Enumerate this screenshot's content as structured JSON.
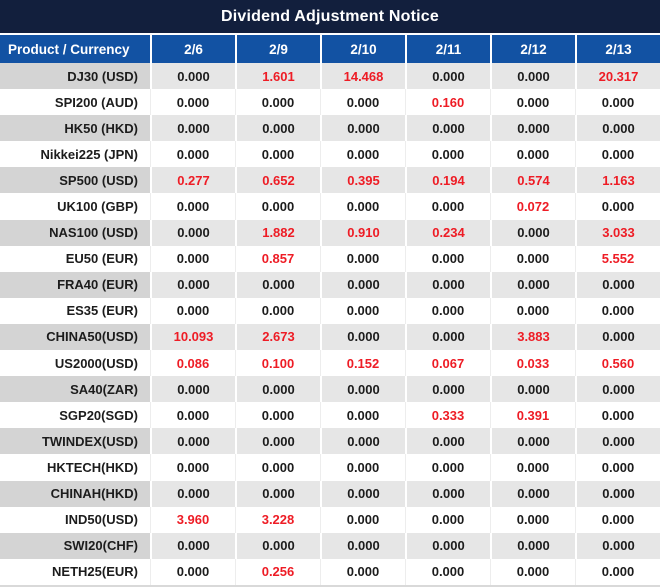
{
  "title": "Dividend Adjustment Notice",
  "colors": {
    "title_bg": "#121f3d",
    "header_bg": "#1252a3",
    "row_gray_product": "#d4d4d4",
    "row_gray_value": "#e6e6e6",
    "row_white": "#ffffff",
    "highlight_red": "#ee1c25",
    "text_dark": "#1c1c1c"
  },
  "chart_data": {
    "type": "table",
    "title": "Dividend Adjustment Notice",
    "columns": [
      "Product / Currency",
      "2/6",
      "2/9",
      "2/10",
      "2/11",
      "2/12",
      "2/13"
    ],
    "rows": [
      {
        "product": "DJ30 (USD)",
        "values": [
          "0.000",
          "1.601",
          "14.468",
          "0.000",
          "0.000",
          "20.317"
        ]
      },
      {
        "product": "SPI200 (AUD)",
        "values": [
          "0.000",
          "0.000",
          "0.000",
          "0.160",
          "0.000",
          "0.000"
        ]
      },
      {
        "product": "HK50 (HKD)",
        "values": [
          "0.000",
          "0.000",
          "0.000",
          "0.000",
          "0.000",
          "0.000"
        ]
      },
      {
        "product": "Nikkei225 (JPN)",
        "values": [
          "0.000",
          "0.000",
          "0.000",
          "0.000",
          "0.000",
          "0.000"
        ]
      },
      {
        "product": "SP500 (USD)",
        "values": [
          "0.277",
          "0.652",
          "0.395",
          "0.194",
          "0.574",
          "1.163"
        ]
      },
      {
        "product": "UK100 (GBP)",
        "values": [
          "0.000",
          "0.000",
          "0.000",
          "0.000",
          "0.072",
          "0.000"
        ]
      },
      {
        "product": "NAS100 (USD)",
        "values": [
          "0.000",
          "1.882",
          "0.910",
          "0.234",
          "0.000",
          "3.033"
        ]
      },
      {
        "product": "EU50 (EUR)",
        "values": [
          "0.000",
          "0.857",
          "0.000",
          "0.000",
          "0.000",
          "5.552"
        ]
      },
      {
        "product": "FRA40 (EUR)",
        "values": [
          "0.000",
          "0.000",
          "0.000",
          "0.000",
          "0.000",
          "0.000"
        ]
      },
      {
        "product": "ES35 (EUR)",
        "values": [
          "0.000",
          "0.000",
          "0.000",
          "0.000",
          "0.000",
          "0.000"
        ]
      },
      {
        "product": "CHINA50(USD)",
        "values": [
          "10.093",
          "2.673",
          "0.000",
          "0.000",
          "3.883",
          "0.000"
        ]
      },
      {
        "product": "US2000(USD)",
        "values": [
          "0.086",
          "0.100",
          "0.152",
          "0.067",
          "0.033",
          "0.560"
        ]
      },
      {
        "product": "SA40(ZAR)",
        "values": [
          "0.000",
          "0.000",
          "0.000",
          "0.000",
          "0.000",
          "0.000"
        ]
      },
      {
        "product": "SGP20(SGD)",
        "values": [
          "0.000",
          "0.000",
          "0.000",
          "0.333",
          "0.391",
          "0.000"
        ]
      },
      {
        "product": "TWINDEX(USD)",
        "values": [
          "0.000",
          "0.000",
          "0.000",
          "0.000",
          "0.000",
          "0.000"
        ]
      },
      {
        "product": "HKTECH(HKD)",
        "values": [
          "0.000",
          "0.000",
          "0.000",
          "0.000",
          "0.000",
          "0.000"
        ]
      },
      {
        "product": "CHINAH(HKD)",
        "values": [
          "0.000",
          "0.000",
          "0.000",
          "0.000",
          "0.000",
          "0.000"
        ]
      },
      {
        "product": "IND50(USD)",
        "values": [
          "3.960",
          "3.228",
          "0.000",
          "0.000",
          "0.000",
          "0.000"
        ]
      },
      {
        "product": "SWI20(CHF)",
        "values": [
          "0.000",
          "0.000",
          "0.000",
          "0.000",
          "0.000",
          "0.000"
        ]
      },
      {
        "product": "NETH25(EUR)",
        "values": [
          "0.000",
          "0.256",
          "0.000",
          "0.000",
          "0.000",
          "0.000"
        ]
      }
    ]
  }
}
